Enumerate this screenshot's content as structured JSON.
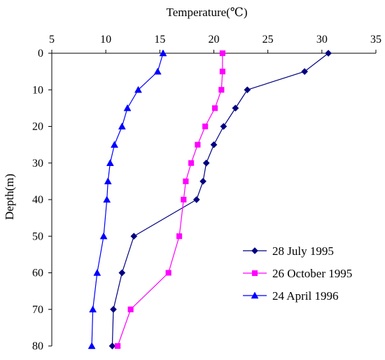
{
  "chart_data": {
    "type": "line",
    "xlabel": "Temperature(℃)",
    "ylabel": "Depth(m)",
    "xlim": [
      5,
      35
    ],
    "ylim": [
      0,
      80
    ],
    "x_axis_position": "top",
    "y_axis_inverted": true,
    "x_ticks": [
      "5",
      "10",
      "15",
      "20",
      "25",
      "30",
      "35"
    ],
    "y_ticks": [
      "0",
      "10",
      "20",
      "30",
      "40",
      "50",
      "60",
      "70",
      "80"
    ],
    "grid": false,
    "legend_position": "bottom-right",
    "series": [
      {
        "name": "28 July 1995",
        "color": "#000080",
        "marker": "diamond",
        "points": [
          {
            "temperature": 30.6,
            "depth": 0
          },
          {
            "temperature": 28.4,
            "depth": 5
          },
          {
            "temperature": 23.1,
            "depth": 10
          },
          {
            "temperature": 22.0,
            "depth": 15
          },
          {
            "temperature": 20.9,
            "depth": 20
          },
          {
            "temperature": 20.0,
            "depth": 25
          },
          {
            "temperature": 19.3,
            "depth": 30
          },
          {
            "temperature": 19.0,
            "depth": 35
          },
          {
            "temperature": 18.4,
            "depth": 40
          },
          {
            "temperature": 12.6,
            "depth": 50
          },
          {
            "temperature": 11.5,
            "depth": 60
          },
          {
            "temperature": 10.7,
            "depth": 70
          },
          {
            "temperature": 10.6,
            "depth": 80
          }
        ]
      },
      {
        "name": "26 October 1995",
        "color": "#ff00ff",
        "marker": "square",
        "points": [
          {
            "temperature": 20.8,
            "depth": 0
          },
          {
            "temperature": 20.8,
            "depth": 5
          },
          {
            "temperature": 20.7,
            "depth": 10
          },
          {
            "temperature": 20.1,
            "depth": 15
          },
          {
            "temperature": 19.2,
            "depth": 20
          },
          {
            "temperature": 18.5,
            "depth": 25
          },
          {
            "temperature": 17.9,
            "depth": 30
          },
          {
            "temperature": 17.4,
            "depth": 35
          },
          {
            "temperature": 17.2,
            "depth": 40
          },
          {
            "temperature": 16.8,
            "depth": 50
          },
          {
            "temperature": 15.8,
            "depth": 60
          },
          {
            "temperature": 12.3,
            "depth": 70
          },
          {
            "temperature": 11.1,
            "depth": 80
          }
        ]
      },
      {
        "name": "24 April 1996",
        "color": "#0000ff",
        "marker": "triangle",
        "points": [
          {
            "temperature": 15.3,
            "depth": 0
          },
          {
            "temperature": 14.8,
            "depth": 5
          },
          {
            "temperature": 13.0,
            "depth": 10
          },
          {
            "temperature": 12.0,
            "depth": 15
          },
          {
            "temperature": 11.5,
            "depth": 20
          },
          {
            "temperature": 10.8,
            "depth": 25
          },
          {
            "temperature": 10.4,
            "depth": 30
          },
          {
            "temperature": 10.2,
            "depth": 35
          },
          {
            "temperature": 10.1,
            "depth": 40
          },
          {
            "temperature": 9.8,
            "depth": 50
          },
          {
            "temperature": 9.2,
            "depth": 60
          },
          {
            "temperature": 8.8,
            "depth": 70
          },
          {
            "temperature": 8.7,
            "depth": 80
          }
        ]
      }
    ]
  }
}
